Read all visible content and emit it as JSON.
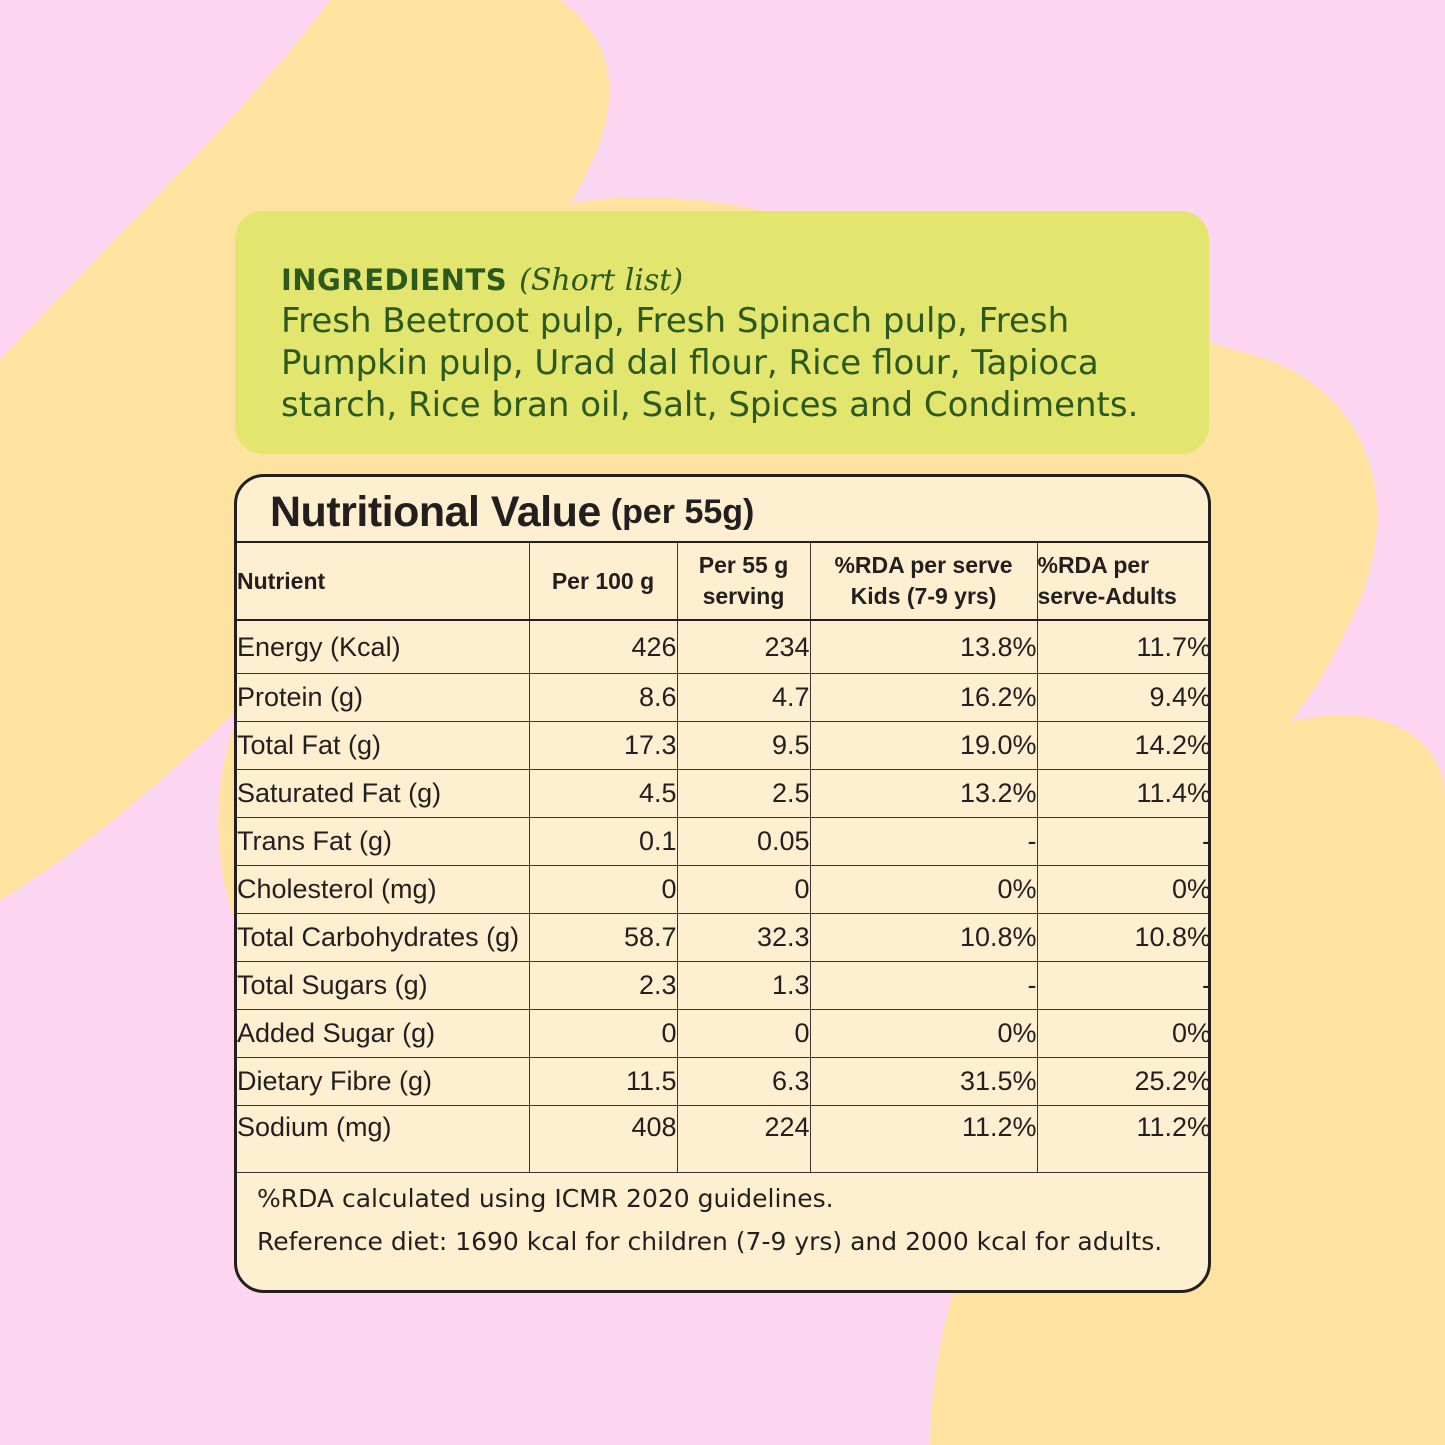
{
  "colors": {
    "background": "#fcd6f0",
    "blob": "#fde39f",
    "ingredients_panel": "#e2e56e",
    "ingredients_text": "#2c5a1e",
    "table_panel": "#feefd1",
    "text_dark": "#231f1f"
  },
  "ingredients": {
    "title": "INGREDIENTS",
    "subtitle": "(Short list)",
    "text": "Fresh Beetroot pulp, Fresh Spinach pulp, Fresh Pumpkin pulp, Urad dal flour, Rice flour, Tapioca starch, Rice bran oil, Salt, Spices and Condiments."
  },
  "nutrition": {
    "title": "Nutritional Value",
    "subtitle": "(per 55g)",
    "headers": {
      "nutrient": "Nutrient",
      "per100": "Per 100 g",
      "per55": "Per 55 g serving",
      "rda_kids": "%RDA per serve Kids (7-9 yrs)",
      "rda_adults": "%RDA per serve-Adults"
    },
    "rows": [
      {
        "nutrient": "Energy (Kcal)",
        "per100": "426",
        "per55": "234",
        "rda_kids": "13.8%",
        "rda_adults": "11.7%"
      },
      {
        "nutrient": "Protein (g)",
        "per100": "8.6",
        "per55": "4.7",
        "rda_kids": "16.2%",
        "rda_adults": "9.4%"
      },
      {
        "nutrient": "Total Fat (g)",
        "per100": "17.3",
        "per55": "9.5",
        "rda_kids": "19.0%",
        "rda_adults": "14.2%"
      },
      {
        "nutrient": "Saturated Fat (g)",
        "per100": "4.5",
        "per55": "2.5",
        "rda_kids": "13.2%",
        "rda_adults": "11.4%"
      },
      {
        "nutrient": "Trans Fat (g)",
        "per100": "0.1",
        "per55": "0.05",
        "rda_kids": "-",
        "rda_adults": "-"
      },
      {
        "nutrient": "Cholesterol (mg)",
        "per100": "0",
        "per55": "0",
        "rda_kids": "0%",
        "rda_adults": "0%"
      },
      {
        "nutrient": "Total Carbohydrates (g)",
        "per100": "58.7",
        "per55": "32.3",
        "rda_kids": "10.8%",
        "rda_adults": "10.8%"
      },
      {
        "nutrient": "Total Sugars (g)",
        "per100": "2.3",
        "per55": "1.3",
        "rda_kids": "-",
        "rda_adults": "-"
      },
      {
        "nutrient": "Added Sugar (g)",
        "per100": "0",
        "per55": "0",
        "rda_kids": "0%",
        "rda_adults": "0%"
      },
      {
        "nutrient": "Dietary Fibre (g)",
        "per100": "11.5",
        "per55": "6.3",
        "rda_kids": "31.5%",
        "rda_adults": "25.2%"
      },
      {
        "nutrient": "Sodium (mg)",
        "per100": "408",
        "per55": "224",
        "rda_kids": "11.2%",
        "rda_adults": "11.2%"
      }
    ],
    "footnote1": "%RDA calculated using ICMR 2020 guidelines.",
    "footnote2": "Reference diet: 1690 kcal for children (7-9 yrs) and 2000 kcal for adults."
  }
}
